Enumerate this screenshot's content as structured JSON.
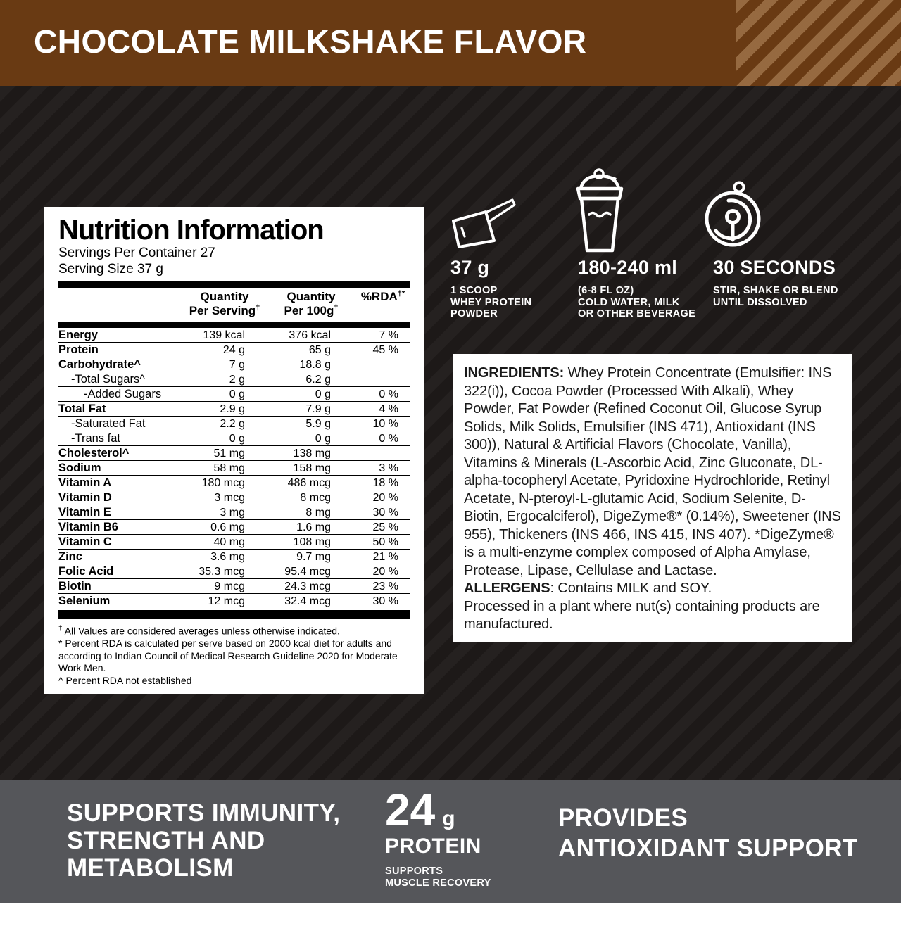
{
  "banner": {
    "title": "CHOCOLATE MILKSHAKE FLAVOR",
    "bg_color": "#693a13"
  },
  "colors": {
    "dark_bg": "#1d1918",
    "band_gray": "#55565a",
    "panel_white": "#ffffff"
  },
  "nutrition": {
    "title": "Nutrition Information",
    "servings_per_container": "Servings Per Container 27",
    "serving_size": "Serving Size 37 g",
    "columns": {
      "col1_l1": "Quantity",
      "col1_l2": "Per Serving",
      "col1_sup": "†",
      "col2_l1": "Quantity",
      "col2_l2": "Per 100g",
      "col2_sup": "†",
      "col3_l": "%RDA",
      "col3_sup": "†*"
    },
    "rows": [
      {
        "label": "Energy",
        "indent": 0,
        "bold": true,
        "per_serving": "139 kcal",
        "per_100g": "376 kcal",
        "rda": "7 %"
      },
      {
        "label": "Protein",
        "indent": 0,
        "bold": true,
        "per_serving": "24 g",
        "per_100g": "65 g",
        "rda": "45 %"
      },
      {
        "label": "Carbohydrate^",
        "indent": 0,
        "bold": true,
        "per_serving": "7 g",
        "per_100g": "18.8 g",
        "rda": ""
      },
      {
        "label": "-Total Sugars^",
        "indent": 1,
        "bold": false,
        "per_serving": "2 g",
        "per_100g": "6.2 g",
        "rda": ""
      },
      {
        "label": "-Added Sugars",
        "indent": 2,
        "bold": false,
        "per_serving": "0 g",
        "per_100g": "0 g",
        "rda": "0 %"
      },
      {
        "label": "Total Fat",
        "indent": 0,
        "bold": true,
        "per_serving": "2.9 g",
        "per_100g": "7.9 g",
        "rda": "4 %"
      },
      {
        "label": "-Saturated Fat",
        "indent": 1,
        "bold": false,
        "per_serving": "2.2 g",
        "per_100g": "5.9 g",
        "rda": "10 %"
      },
      {
        "label": "-Trans fat",
        "indent": 1,
        "bold": false,
        "per_serving": "0 g",
        "per_100g": "0 g",
        "rda": "0 %"
      },
      {
        "label": "Cholesterol^",
        "indent": 0,
        "bold": true,
        "per_serving": "51 mg",
        "per_100g": "138 mg",
        "rda": ""
      },
      {
        "label": "Sodium",
        "indent": 0,
        "bold": true,
        "per_serving": "58 mg",
        "per_100g": "158 mg",
        "rda": "3 %"
      },
      {
        "label": "Vitamin A",
        "indent": 0,
        "bold": true,
        "per_serving": "180 mcg",
        "per_100g": "486 mcg",
        "rda": "18 %"
      },
      {
        "label": "Vitamin D",
        "indent": 0,
        "bold": true,
        "per_serving": "3 mcg",
        "per_100g": "8 mcg",
        "rda": "20 %"
      },
      {
        "label": "Vitamin E",
        "indent": 0,
        "bold": true,
        "per_serving": "3 mg",
        "per_100g": "8 mg",
        "rda": "30 %"
      },
      {
        "label": "Vitamin B6",
        "indent": 0,
        "bold": true,
        "per_serving": "0.6 mg",
        "per_100g": "1.6 mg",
        "rda": "25 %"
      },
      {
        "label": "Vitamin C",
        "indent": 0,
        "bold": true,
        "per_serving": "40 mg",
        "per_100g": "108 mg",
        "rda": "50 %"
      },
      {
        "label": "Zinc",
        "indent": 0,
        "bold": true,
        "per_serving": "3.6 mg",
        "per_100g": "9.7 mg",
        "rda": "21 %"
      },
      {
        "label": "Folic Acid",
        "indent": 0,
        "bold": true,
        "per_serving": "35.3 mcg",
        "per_100g": "95.4 mcg",
        "rda": "20 %"
      },
      {
        "label": "Biotin",
        "indent": 0,
        "bold": true,
        "per_serving": "9 mcg",
        "per_100g": "24.3 mcg",
        "rda": "23 %"
      },
      {
        "label": "Selenium",
        "indent": 0,
        "bold": true,
        "per_serving": "12 mcg",
        "per_100g": "32.4 mcg",
        "rda": "30 %"
      }
    ],
    "footnotes": [
      {
        "mark": "†",
        "text": "All Values are considered averages unless otherwise indicated."
      },
      {
        "mark": "*",
        "text": "Percent RDA is calculated per serve based on 2000 kcal diet for adults and according to Indian Council of Medical Research Guideline 2020 for Moderate Work Men."
      },
      {
        "mark": "^",
        "text": "Percent RDA not established"
      }
    ]
  },
  "directions": [
    {
      "icon": "scoop-icon",
      "headline": "37 g",
      "lines": [
        "1 SCOOP",
        "WHEY PROTEIN",
        "POWDER"
      ]
    },
    {
      "icon": "shaker-icon",
      "headline": "180-240 ml",
      "lines": [
        "(6-8 FL OZ)",
        "COLD WATER, MILK",
        "OR OTHER BEVERAGE"
      ]
    },
    {
      "icon": "timer-icon",
      "headline": "30 SECONDS",
      "lines": [
        "STIR, SHAKE OR BLEND",
        "UNTIL DISSOLVED"
      ]
    }
  ],
  "ingredients": {
    "label": "INGREDIENTS:",
    "text": "Whey Protein Concentrate (Emulsifier: INS 322(i)), Cocoa Powder (Processed With Alkali), Whey Powder, Fat Powder (Refined Coconut Oil, Glucose Syrup Solids, Milk Solids, Emulsifier (INS 471), Antioxidant (INS 300)), Natural & Artificial Flavors (Chocolate, Vanilla), Vitamins & Minerals (L-Ascorbic Acid, Zinc Gluconate, DL-alpha-tocopheryl Acetate, Pyridoxine Hydrochloride, Retinyl Acetate, N-pteroyl-L-glutamic Acid, Sodium Selenite, D-Biotin, Ergocalciferol), DigeZyme®* (0.14%), Sweetener (INS 955), Thickeners (INS 466, INS 415, INS 407). *DigeZyme® is a multi-enzyme complex composed of Alpha Amylase, Protease, Lipase, Cellulase and Lactase.",
    "allergens_label": "ALLERGENS",
    "allergens_text": ": Contains MILK and SOY.",
    "processed_text": "Processed in a plant where nut(s) containing products are manufactured."
  },
  "benefits": {
    "left": {
      "lines": [
        "SUPPORTS IMMUNITY,",
        "STRENGTH AND",
        "METABOLISM"
      ]
    },
    "middle": {
      "amount": "24",
      "unit": "g",
      "label": "PROTEIN",
      "sublines": [
        "SUPPORTS",
        "MUSCLE RECOVERY"
      ]
    },
    "right": {
      "lines": [
        "PROVIDES",
        "ANTIOXIDANT SUPPORT"
      ]
    }
  }
}
